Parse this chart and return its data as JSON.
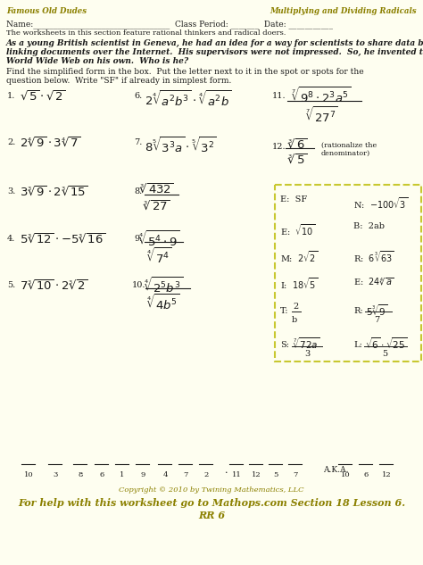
{
  "title_left": "Famous Old Dudes",
  "title_right": "Multiplying and Dividing Radicals",
  "title_color": "#8B8000",
  "bg_color": "#FEFEF0",
  "text_color": "#1a1a1a",
  "box_color": "#C8C830",
  "copyright": "Copyright © 2010 by Twining Mathematics, LLC",
  "footer": "For help with this worksheet go to Mathops.com Section 18 Lesson 6.",
  "footer2": "RR 6"
}
